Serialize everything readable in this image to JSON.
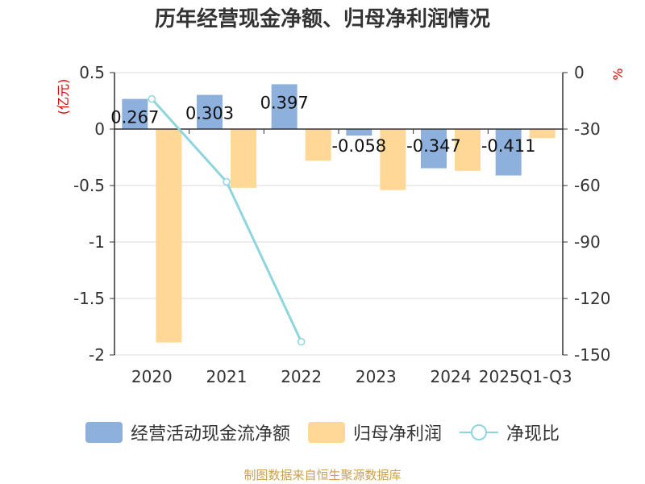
{
  "source_note": "制图数据来自恒生聚源数据库",
  "colors": {
    "cash_flow": "#8eb0dc",
    "net_profit": "#ffd898",
    "ratio": "#8ed5dd",
    "axis_unit": "#e00000",
    "footer": "#c8a050",
    "text": "#333333"
  },
  "chart_data": {
    "type": "bar",
    "title": "历年经营现金净额、归母净利润情况",
    "categories": [
      "2020",
      "2021",
      "2022",
      "2023",
      "2024",
      "2025Q1-Q3"
    ],
    "y_left": {
      "label": "(亿元)",
      "ylim": [
        -2,
        0.5
      ],
      "ticks": [
        "0.5",
        "0",
        "-0.5",
        "-1",
        "-1.5",
        "-2"
      ],
      "tick_values": [
        0.5,
        0,
        -0.5,
        -1,
        -1.5,
        -2
      ]
    },
    "y_right": {
      "label": "%",
      "ylim": [
        -150,
        0
      ],
      "ticks": [
        "0",
        "-30",
        "-60",
        "-90",
        "-120",
        "-150"
      ],
      "tick_values": [
        0,
        -30,
        -60,
        -90,
        -120,
        -150
      ]
    },
    "series": [
      {
        "name": "经营活动现金流净额",
        "type": "bar",
        "axis": "left",
        "values": [
          0.267,
          0.303,
          0.397,
          -0.058,
          -0.347,
          -0.411
        ],
        "labels": [
          "0.267",
          "0.303",
          "0.397",
          "-0.058",
          "-0.347",
          "-0.411"
        ]
      },
      {
        "name": "归母净利润",
        "type": "bar",
        "axis": "left",
        "values": [
          -1.89,
          -0.52,
          -0.28,
          -0.54,
          -0.37,
          -0.08
        ]
      },
      {
        "name": "净现比",
        "type": "line",
        "axis": "right",
        "values": [
          -14,
          -58,
          -143,
          null,
          null,
          null
        ]
      }
    ],
    "grid": true,
    "legend_position": "bottom"
  }
}
